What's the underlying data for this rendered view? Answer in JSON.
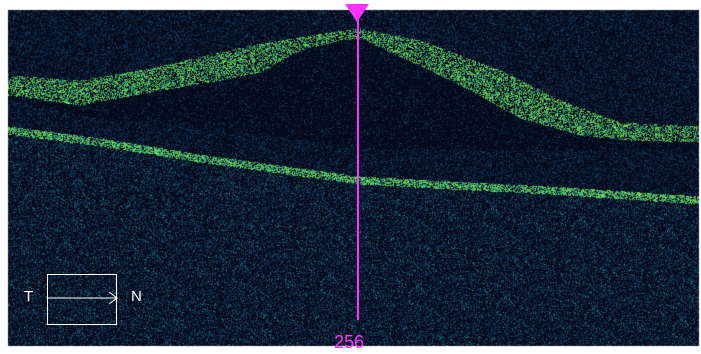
{
  "scan": {
    "background_color": "#050a1c",
    "noise_color": "#1b4f79",
    "bright_layer_color": "#7cf25a",
    "mid_layer_color": "#2ea88f"
  },
  "orientation": {
    "left_label": "T",
    "right_label": "N",
    "label_color": "#ffffff"
  },
  "cursor": {
    "position_label": "256",
    "color": "#ff33ff"
  }
}
